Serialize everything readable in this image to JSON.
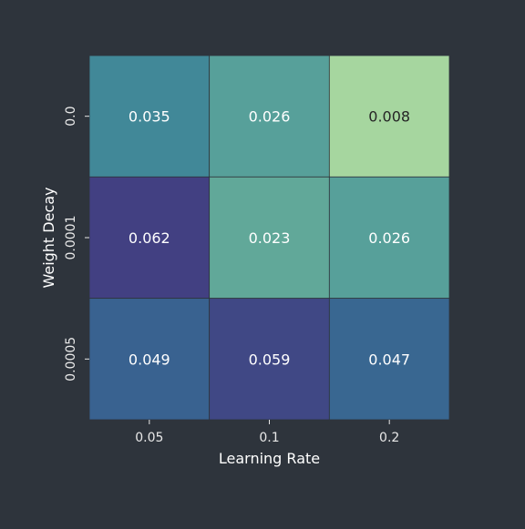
{
  "chart_data": {
    "type": "heatmap",
    "title": "",
    "xlabel": "Learning Rate",
    "ylabel": "Weight Decay",
    "x_categories": [
      "0.05",
      "0.1",
      "0.2"
    ],
    "y_categories": [
      "0.0",
      "0.0001",
      "0.0005"
    ],
    "values": [
      [
        0.035,
        0.026,
        0.008
      ],
      [
        0.062,
        0.023,
        0.026
      ],
      [
        0.049,
        0.059,
        0.047
      ]
    ],
    "value_labels": [
      [
        "0.035",
        "0.026",
        "0.008"
      ],
      [
        "0.062",
        "0.023",
        "0.026"
      ],
      [
        "0.049",
        "0.059",
        "0.047"
      ]
    ],
    "colormap": "crest",
    "colorbar": false,
    "grid": false
  },
  "colors": {
    "background": "#2e343c",
    "text": "#ffffff",
    "tick": "#e8e8e8",
    "cell_border": "#2e343c",
    "dark_annotation": "#262626"
  }
}
